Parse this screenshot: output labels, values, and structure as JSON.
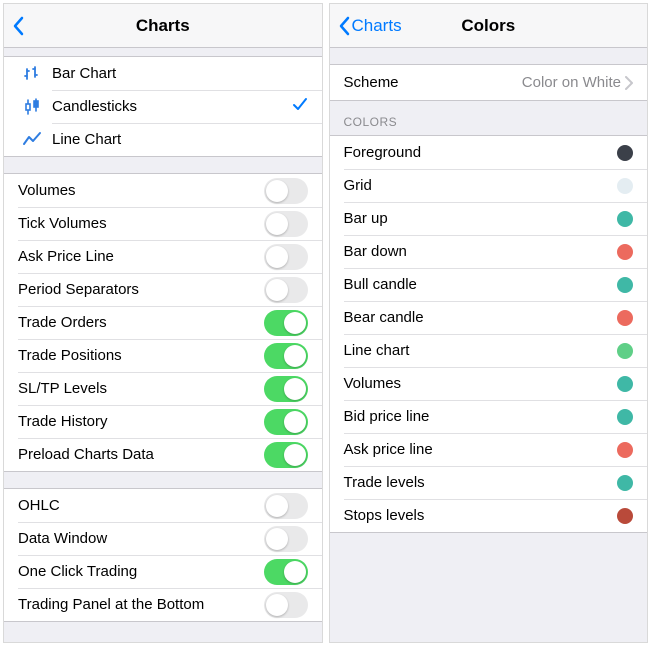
{
  "leftPane": {
    "title": "Charts",
    "chartTypes": [
      {
        "label": "Bar Chart",
        "icon": "bar",
        "selected": false
      },
      {
        "label": "Candlesticks",
        "icon": "candle",
        "selected": true
      },
      {
        "label": "Line Chart",
        "icon": "line",
        "selected": false
      }
    ],
    "toggles1": [
      {
        "label": "Volumes",
        "on": false
      },
      {
        "label": "Tick Volumes",
        "on": false
      },
      {
        "label": "Ask Price Line",
        "on": false
      },
      {
        "label": "Period Separators",
        "on": false
      },
      {
        "label": "Trade Orders",
        "on": true
      },
      {
        "label": "Trade Positions",
        "on": true
      },
      {
        "label": "SL/TP Levels",
        "on": true
      },
      {
        "label": "Trade History",
        "on": true
      },
      {
        "label": "Preload Charts Data",
        "on": true
      }
    ],
    "toggles2": [
      {
        "label": "OHLC",
        "on": false
      },
      {
        "label": "Data Window",
        "on": false
      },
      {
        "label": "One Click Trading",
        "on": true
      },
      {
        "label": "Trading Panel at the Bottom",
        "on": false
      }
    ]
  },
  "rightPane": {
    "backLabel": "Charts",
    "title": "Colors",
    "scheme": {
      "label": "Scheme",
      "value": "Color on White"
    },
    "colorsHeader": "COLORS",
    "colors": [
      {
        "label": "Foreground",
        "hex": "#3b4049"
      },
      {
        "label": "Grid",
        "hex": "#e4edf2"
      },
      {
        "label": "Bar up",
        "hex": "#3fb8a6"
      },
      {
        "label": "Bar down",
        "hex": "#ec6a5e"
      },
      {
        "label": "Bull candle",
        "hex": "#3fb8a6"
      },
      {
        "label": "Bear candle",
        "hex": "#ec6a5e"
      },
      {
        "label": "Line chart",
        "hex": "#5fcf87"
      },
      {
        "label": "Volumes",
        "hex": "#3fb8a6"
      },
      {
        "label": "Bid price line",
        "hex": "#3fb8a6"
      },
      {
        "label": "Ask price line",
        "hex": "#ec6a5e"
      },
      {
        "label": "Trade levels",
        "hex": "#3fb8a6"
      },
      {
        "label": "Stops levels",
        "hex": "#b94a3a"
      }
    ]
  },
  "iconColors": {
    "chartType": "#2f7de1"
  }
}
